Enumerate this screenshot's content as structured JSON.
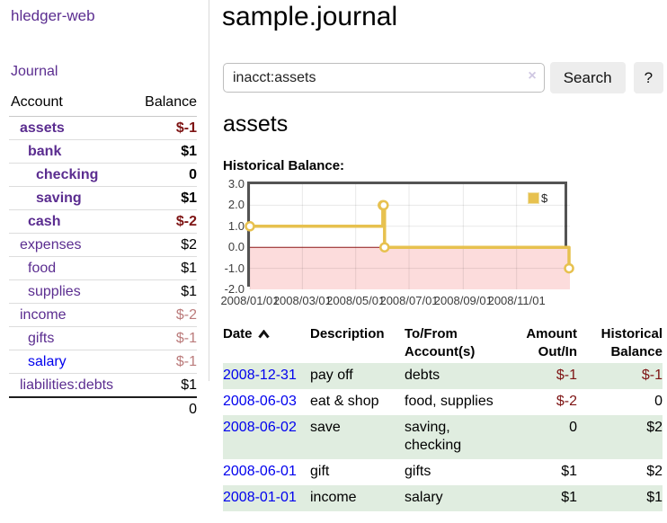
{
  "app": {
    "title": "hledger-web"
  },
  "sidebar": {
    "journal_link": "Journal",
    "accounts": {
      "col_account": "Account",
      "col_balance": "Balance",
      "rows": [
        {
          "name": "assets",
          "balance": "$-1",
          "level": 1,
          "bold": true,
          "neg": "strong",
          "link": "visited"
        },
        {
          "name": "bank",
          "balance": "$1",
          "level": 2,
          "bold": true,
          "neg": "none",
          "link": "visited"
        },
        {
          "name": "checking",
          "balance": "0",
          "level": 3,
          "bold": true,
          "neg": "none",
          "link": "visited"
        },
        {
          "name": "saving",
          "balance": "$1",
          "level": 3,
          "bold": true,
          "neg": "none",
          "link": "visited"
        },
        {
          "name": "cash",
          "balance": "$-2",
          "level": 2,
          "bold": true,
          "neg": "strong",
          "link": "visited"
        },
        {
          "name": "expenses",
          "balance": "$2",
          "level": 1,
          "bold": false,
          "neg": "none",
          "link": "visited"
        },
        {
          "name": "food",
          "balance": "$1",
          "level": 2,
          "bold": false,
          "neg": "none",
          "link": "visited"
        },
        {
          "name": "supplies",
          "balance": "$1",
          "level": 2,
          "bold": false,
          "neg": "none",
          "link": "visited"
        },
        {
          "name": "income",
          "balance": "$-2",
          "level": 1,
          "bold": false,
          "neg": "soft",
          "link": "visited"
        },
        {
          "name": "gifts",
          "balance": "$-1",
          "level": 2,
          "bold": false,
          "neg": "soft",
          "link": "visited"
        },
        {
          "name": "salary",
          "balance": "$-1",
          "level": 2,
          "bold": false,
          "neg": "soft",
          "link": "unvisited"
        },
        {
          "name": "liabilities:debts",
          "balance": "$1",
          "level": 1,
          "bold": false,
          "neg": "none",
          "link": "visited"
        }
      ],
      "total": "0"
    }
  },
  "main": {
    "title": "sample.journal",
    "search": {
      "value": "inacct:assets",
      "clear": "×",
      "button": "Search",
      "help": "?"
    },
    "account_heading": "assets",
    "section_label": "Historical Balance:"
  },
  "chart_data": {
    "type": "line",
    "step": true,
    "title": "Historical Balance:",
    "x_start": "2008-01-01",
    "x_end": "2009-01-01",
    "ylim": [
      -2.0,
      3.0
    ],
    "yticks": [
      3.0,
      2.0,
      1.0,
      0.0,
      -1.0,
      -2.0
    ],
    "xticks": [
      {
        "date": "2008-01-01",
        "label": "2008/01/01"
      },
      {
        "date": "2008-03-01",
        "label": "2008/03/01"
      },
      {
        "date": "2008-05-01",
        "label": "2008/05/01"
      },
      {
        "date": "2008-07-01",
        "label": "2008/07/01"
      },
      {
        "date": "2008-09-01",
        "label": "2008/09/01"
      },
      {
        "date": "2008-11-01",
        "label": "2008/11/01"
      }
    ],
    "series": [
      {
        "name": "$",
        "points": [
          {
            "date": "2008-01-01",
            "value": 1
          },
          {
            "date": "2008-06-01",
            "value": 2
          },
          {
            "date": "2008-06-02",
            "value": 2
          },
          {
            "date": "2008-06-03",
            "value": 0
          },
          {
            "date": "2008-12-31",
            "value": -1
          }
        ]
      }
    ],
    "legend": [
      {
        "label": "$",
        "color": "#e7c14f"
      }
    ],
    "line_color": "#e7c14f",
    "negative_region_color": "#fcdcdc",
    "zero_line_color": "#8c1717",
    "grid": true,
    "legend_position": "top-right"
  },
  "register": {
    "headers": {
      "date": "Date",
      "description": "Description",
      "accounts": "To/From Account(s)",
      "amount": "Amount Out/In",
      "balance": "Historical Balance"
    },
    "rows": [
      {
        "date": "2008-12-31",
        "description": "pay off",
        "accounts": "debts",
        "amount": "$-1",
        "amount_neg": true,
        "balance": "$-1",
        "balance_neg": true
      },
      {
        "date": "2008-06-03",
        "description": "eat & shop",
        "accounts": "food, supplies",
        "amount": "$-2",
        "amount_neg": true,
        "balance": "0",
        "balance_neg": false
      },
      {
        "date": "2008-06-02",
        "description": "save",
        "accounts": "saving, checking",
        "amount": "0",
        "amount_neg": false,
        "balance": "$2",
        "balance_neg": false
      },
      {
        "date": "2008-06-01",
        "description": "gift",
        "accounts": "gifts",
        "amount": "$1",
        "amount_neg": false,
        "balance": "$2",
        "balance_neg": false
      },
      {
        "date": "2008-01-01",
        "description": "income",
        "accounts": "salary",
        "amount": "$1",
        "amount_neg": false,
        "balance": "$1",
        "balance_neg": false
      }
    ]
  }
}
